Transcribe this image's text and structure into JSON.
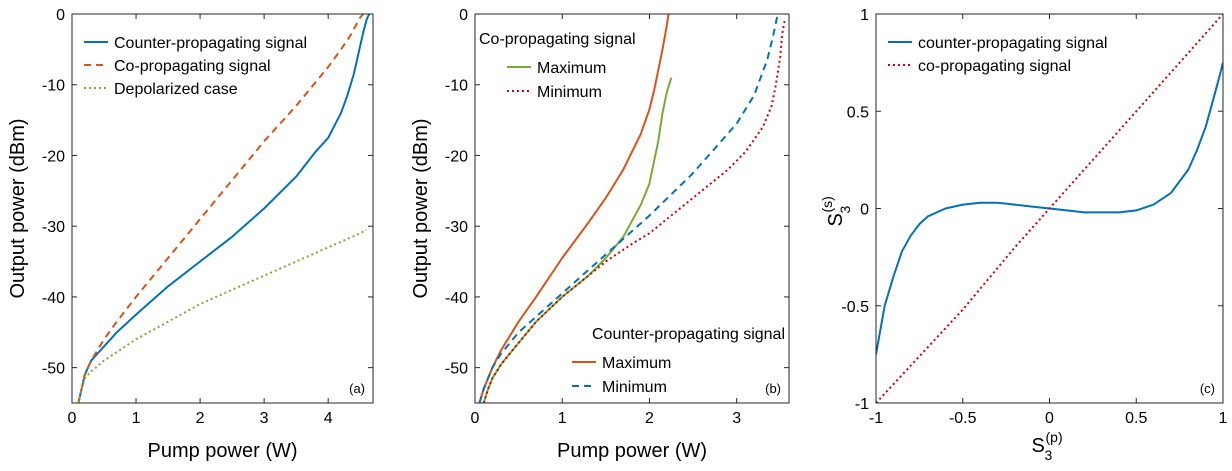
{
  "chart_data": [
    {
      "type": "line",
      "panel_label": "(a)",
      "xlabel": "Pump power (W)",
      "ylabel": "Output power (dBm)",
      "xlim": [
        0,
        4.7
      ],
      "ylim": [
        -55,
        0
      ],
      "xticks": [
        0,
        1,
        2,
        3,
        4
      ],
      "yticks": [
        0,
        -10,
        -20,
        -30,
        -40,
        -50
      ],
      "grid": false,
      "legend": {
        "position": "top-left",
        "title": ""
      },
      "series": [
        {
          "name": "Counter-propagating signal",
          "color": "#0072BD",
          "dash": "solid",
          "x": [
            0.1,
            0.15,
            0.2,
            0.3,
            0.4,
            0.5,
            0.7,
            1.0,
            1.5,
            2.0,
            2.5,
            3.0,
            3.5,
            3.8,
            4.0,
            4.2,
            4.3,
            4.4,
            4.5,
            4.55,
            4.6,
            4.63,
            4.65
          ],
          "y": [
            -55,
            -53,
            -51,
            -49,
            -48,
            -47,
            -45,
            -42.5,
            -38.5,
            -35,
            -31.5,
            -27.5,
            -23,
            -19.5,
            -17.5,
            -14,
            -11.5,
            -8.5,
            -4.5,
            -2.5,
            -0.8,
            -0.2,
            0
          ]
        },
        {
          "name": "Co-propagating signal",
          "color": "#D95319",
          "dash": "dashed",
          "x": [
            0.1,
            0.15,
            0.2,
            0.3,
            0.5,
            0.7,
            1.0,
            1.5,
            2.0,
            2.5,
            3.0,
            3.5,
            4.0,
            4.2,
            4.35,
            4.45,
            4.5,
            4.55
          ],
          "y": [
            -55,
            -53,
            -51,
            -49,
            -46,
            -43.5,
            -40,
            -34.5,
            -29,
            -23.5,
            -18,
            -13,
            -7.5,
            -5,
            -3,
            -1.3,
            -0.5,
            0
          ]
        },
        {
          "name": "Depolarized case",
          "color": "#77AC30",
          "dash": "dotted",
          "x": [
            0.1,
            0.15,
            0.2,
            0.3,
            0.4,
            0.5,
            1.0,
            1.5,
            2.0,
            2.5,
            3.0,
            3.5,
            4.0,
            4.5,
            4.6
          ],
          "y": [
            -55,
            -53,
            -51.5,
            -50.5,
            -49.8,
            -49,
            -46,
            -43.5,
            -41,
            -39,
            -37,
            -35,
            -33,
            -31,
            -30.5
          ]
        }
      ]
    },
    {
      "type": "line",
      "panel_label": "(b)",
      "xlabel": "Pump power (W)",
      "ylabel": "Output power (dBm)",
      "xlim": [
        0,
        3.6
      ],
      "ylim": [
        -55,
        0
      ],
      "xticks": [
        0,
        1,
        2,
        3
      ],
      "yticks": [
        0,
        -10,
        -20,
        -30,
        -40,
        -50
      ],
      "grid": false,
      "legend_groups": [
        {
          "title": "Co-propagating signal",
          "position": "top-left",
          "entries": [
            {
              "name": "Maximum",
              "series": 0
            },
            {
              "name": "Minimum",
              "series": 1
            }
          ]
        },
        {
          "title": "Counter-propagating signal",
          "position": "bottom-right",
          "entries": [
            {
              "name": "Maximum",
              "series": 2
            },
            {
              "name": "Minimum",
              "series": 3
            }
          ]
        }
      ],
      "series": [
        {
          "name": "Maximum",
          "group": "Co-propagating signal",
          "color": "#77AC30",
          "dash": "solid",
          "x": [
            0.1,
            0.15,
            0.2,
            0.3,
            0.5,
            0.7,
            1.0,
            1.3,
            1.5,
            1.7,
            1.9,
            2.0,
            2.05,
            2.1,
            2.15,
            2.2,
            2.25
          ],
          "y": [
            -55,
            -53,
            -51.5,
            -49.5,
            -46.5,
            -43.5,
            -40,
            -37,
            -34.5,
            -31.5,
            -27,
            -24,
            -21,
            -18,
            -14,
            -11,
            -9
          ]
        },
        {
          "name": "Minimum",
          "group": "Co-propagating signal",
          "color": "#D00000",
          "dash": "dotted",
          "x": [
            0.1,
            0.15,
            0.2,
            0.3,
            0.5,
            0.7,
            1.0,
            1.3,
            1.5,
            1.8,
            2.0,
            2.3,
            2.6,
            2.9,
            3.1,
            3.3,
            3.4,
            3.45,
            3.5,
            3.52,
            3.55
          ],
          "y": [
            -55,
            -53,
            -51.5,
            -49.5,
            -46.5,
            -43.5,
            -40,
            -37,
            -35,
            -32.5,
            -31,
            -28,
            -25,
            -22,
            -19.5,
            -16,
            -13,
            -10,
            -6,
            -3,
            -1
          ]
        },
        {
          "name": "Maximum",
          "group": "Counter-propagating signal",
          "color": "#D95319",
          "dash": "solid",
          "x": [
            0.05,
            0.1,
            0.2,
            0.3,
            0.5,
            0.7,
            1.0,
            1.3,
            1.5,
            1.7,
            1.9,
            2.0,
            2.05,
            2.1,
            2.15,
            2.18,
            2.2,
            2.22
          ],
          "y": [
            -55,
            -53,
            -50,
            -47.5,
            -43.5,
            -40,
            -34.5,
            -29.5,
            -26,
            -22,
            -17,
            -13.5,
            -11,
            -8,
            -5,
            -3,
            -1.5,
            0
          ]
        },
        {
          "name": "Minimum",
          "group": "Counter-propagating signal",
          "color": "#0072BD",
          "dash": "dashed",
          "x": [
            0.05,
            0.1,
            0.2,
            0.3,
            0.5,
            1.0,
            1.5,
            2.0,
            2.5,
            3.0,
            3.2,
            3.35,
            3.42,
            3.47
          ],
          "y": [
            -55,
            -53,
            -50,
            -48,
            -45,
            -39.5,
            -34,
            -28.5,
            -22.5,
            -15.5,
            -11.5,
            -6.5,
            -3,
            0
          ]
        }
      ]
    },
    {
      "type": "line",
      "panel_label": "(c)",
      "xlabel_main": "S",
      "xlabel_sub": "3",
      "xlabel_sup": "(p)",
      "ylabel_main": "S",
      "ylabel_sub": "3",
      "ylabel_sup": "(s)",
      "xlim": [
        -1,
        1
      ],
      "ylim": [
        -1,
        1
      ],
      "xticks": [
        -1,
        -0.5,
        0,
        0.5,
        1
      ],
      "yticks": [
        -1,
        -0.5,
        0,
        0.5,
        1
      ],
      "grid": false,
      "legend": {
        "position": "top-left",
        "title": ""
      },
      "series": [
        {
          "name": "counter-propagating signal",
          "color": "#0072BD",
          "dash": "solid",
          "x": [
            -1,
            -0.97,
            -0.95,
            -0.9,
            -0.85,
            -0.8,
            -0.75,
            -0.7,
            -0.6,
            -0.5,
            -0.4,
            -0.3,
            -0.2,
            -0.1,
            0,
            0.1,
            0.2,
            0.3,
            0.4,
            0.5,
            0.6,
            0.7,
            0.8,
            0.85,
            0.9,
            0.95,
            0.98,
            1
          ],
          "y": [
            -0.75,
            -0.6,
            -0.5,
            -0.35,
            -0.22,
            -0.14,
            -0.08,
            -0.04,
            0,
            0.02,
            0.03,
            0.03,
            0.02,
            0.01,
            0,
            -0.01,
            -0.02,
            -0.02,
            -0.02,
            -0.01,
            0.02,
            0.08,
            0.2,
            0.3,
            0.42,
            0.58,
            0.68,
            0.75
          ]
        },
        {
          "name": "co-propagating signal",
          "color": "#D00000",
          "dash": "dotted",
          "x": [
            -1,
            -0.5,
            -0.2,
            0,
            0.2,
            0.5,
            1
          ],
          "y": [
            -1,
            -0.52,
            -0.2,
            0,
            0.2,
            0.5,
            1
          ]
        }
      ]
    }
  ]
}
